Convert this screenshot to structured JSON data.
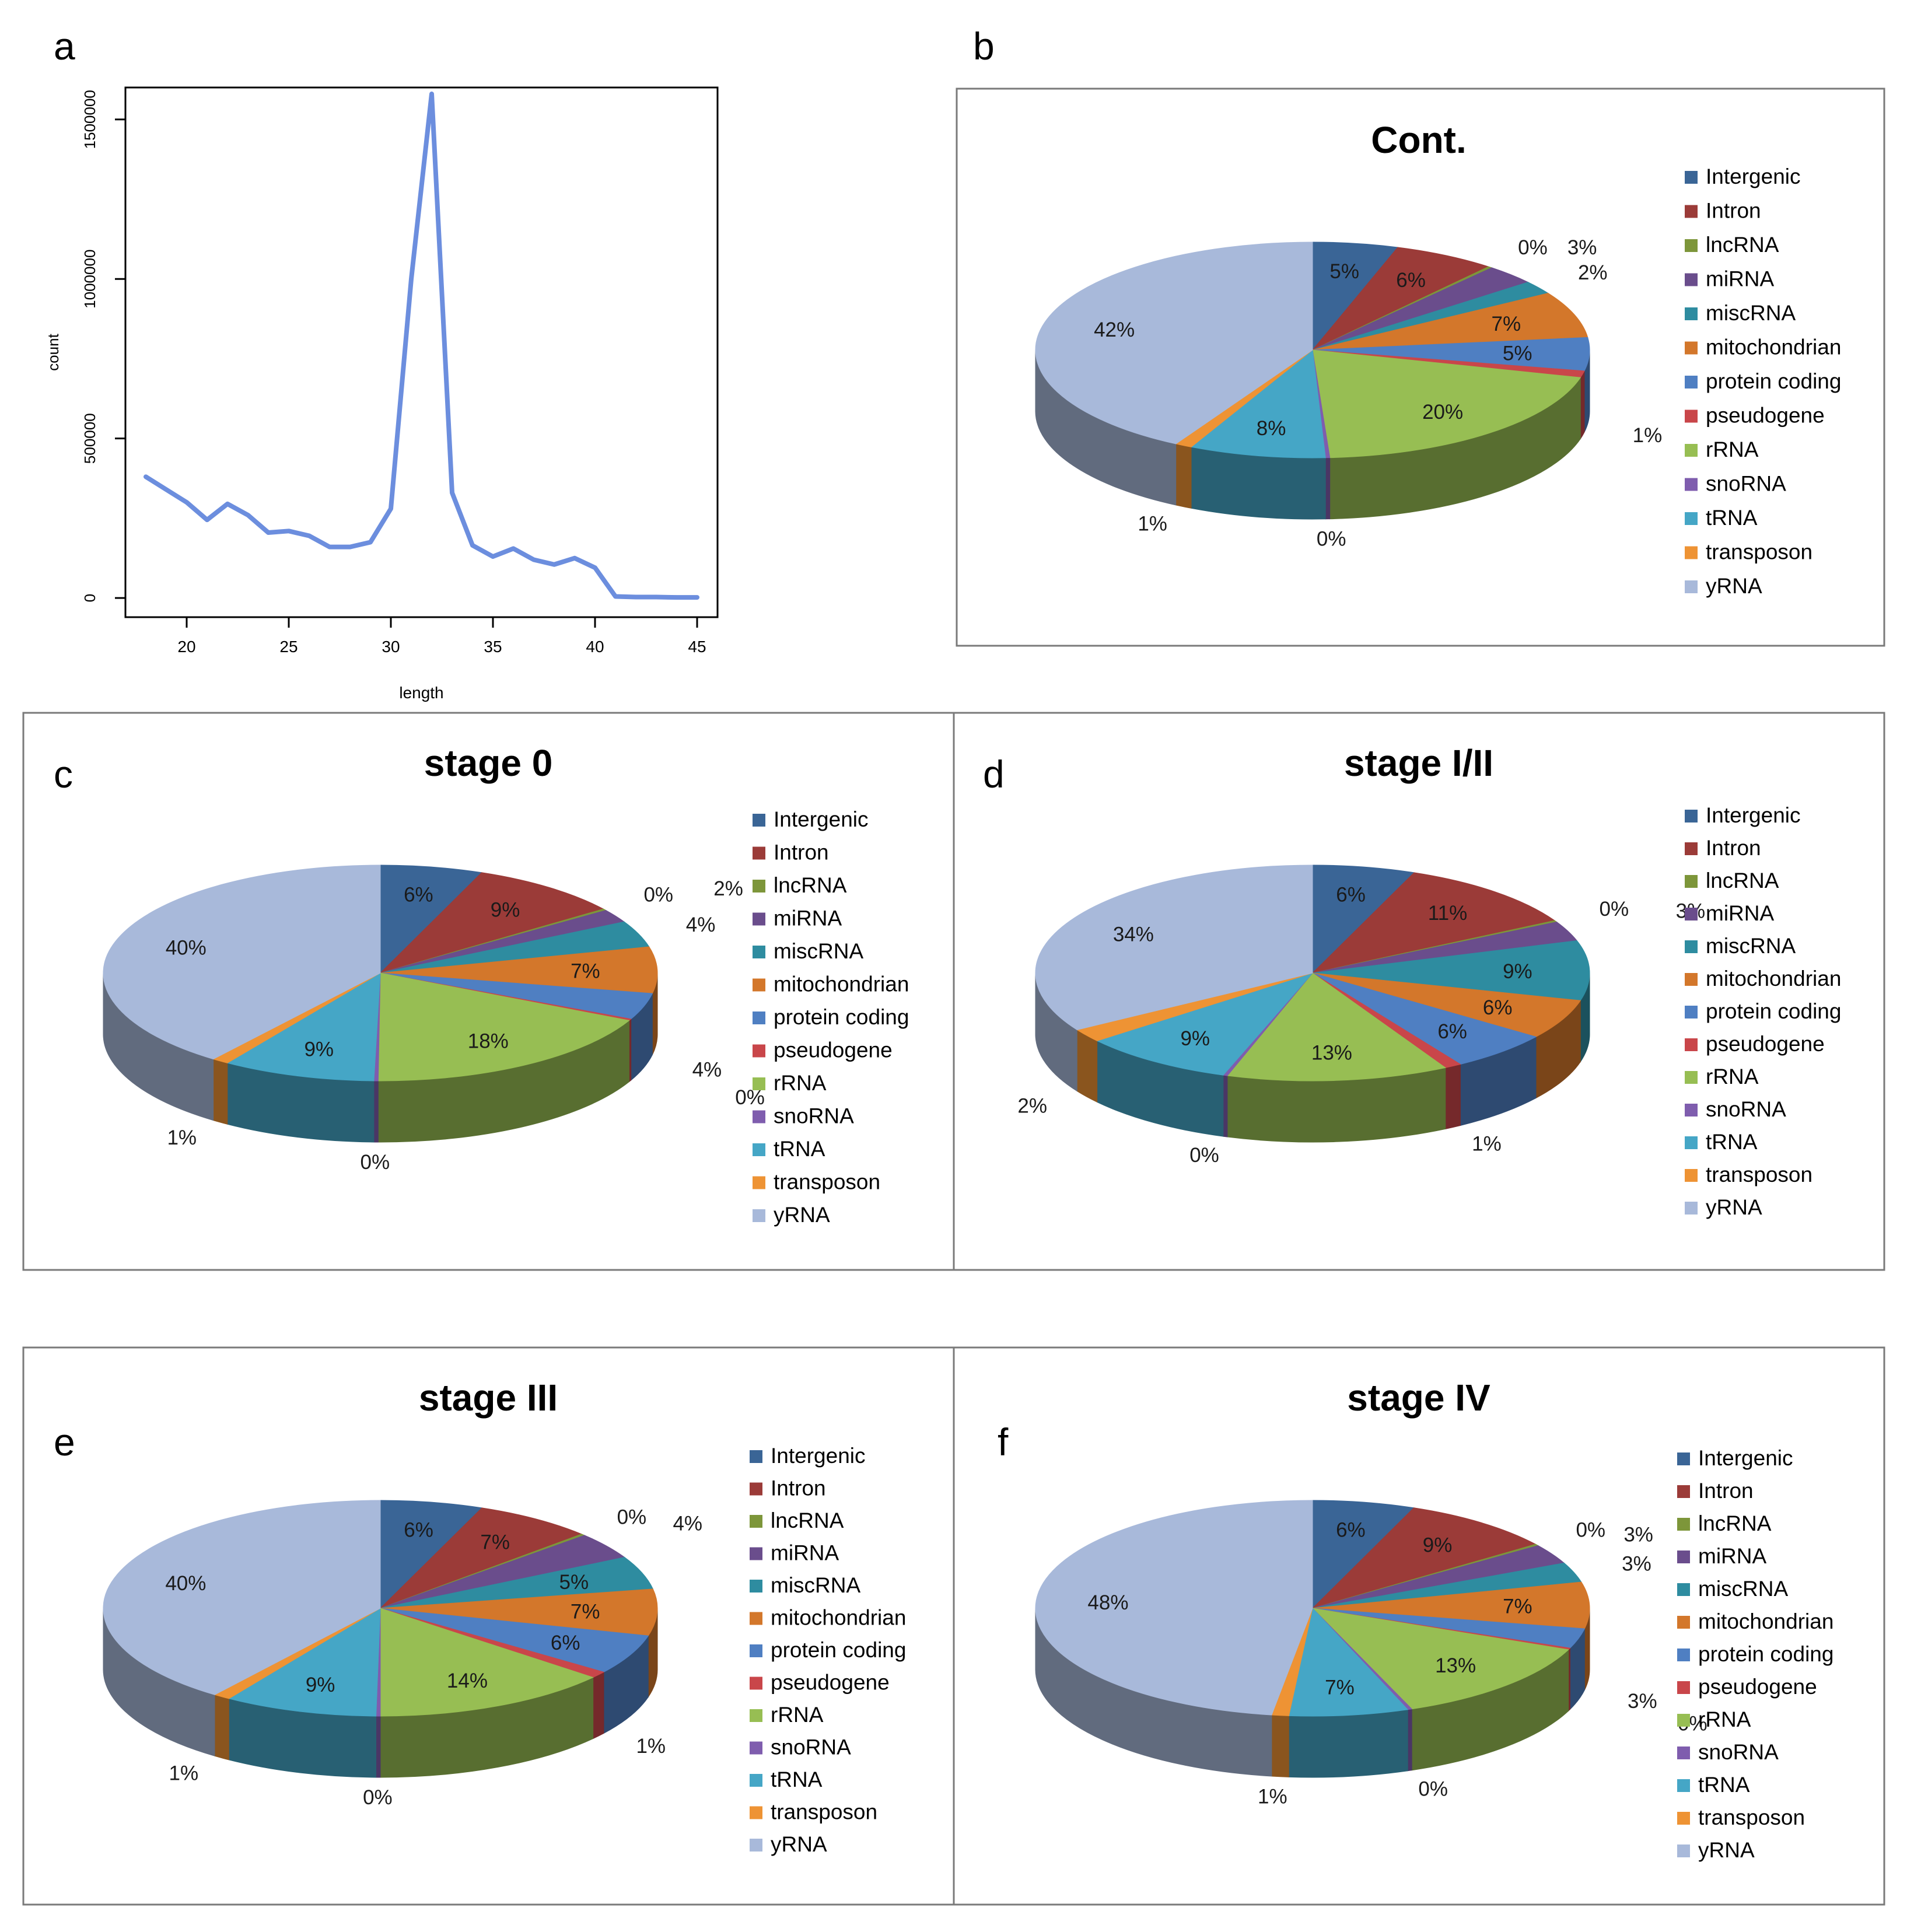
{
  "panel_letters": [
    "a",
    "b",
    "c",
    "d",
    "e",
    "f"
  ],
  "legend": {
    "labels": [
      "Intergenic",
      "Intron",
      "lncRNA",
      "miRNA",
      "miscRNA",
      "mitochondrian",
      "protein coding",
      "pseudogene",
      "rRNA",
      "snoRNA",
      "tRNA",
      "transposon",
      "yRNA"
    ],
    "colors": [
      "#3A6596",
      "#9B3B38",
      "#7D963A",
      "#6A4D8C",
      "#2E8CA0",
      "#D3772B",
      "#4F7FC2",
      "#C9464A",
      "#97BE53",
      "#7F5DAE",
      "#45A6C6",
      "#EE9334",
      "#A8B9DA"
    ]
  },
  "chart_data": [
    {
      "type": "line",
      "panel": "a",
      "title": "",
      "xlabel": "length",
      "ylabel": "count",
      "xlim": [
        17,
        46
      ],
      "ylim": [
        -60000,
        1600000
      ],
      "x_ticks": [
        20,
        25,
        30,
        35,
        40,
        45
      ],
      "y_ticks": [
        0,
        500000,
        1000000,
        1500000
      ],
      "x_tick_labels": [
        "20",
        "25",
        "30",
        "35",
        "40",
        "45"
      ],
      "y_tick_labels": [
        "0",
        "500000",
        "1000000",
        "1500000"
      ],
      "line_color": "#6C8EDE",
      "x": [
        18,
        19,
        20,
        21,
        22,
        23,
        24,
        25,
        26,
        27,
        28,
        29,
        30,
        31,
        32,
        33,
        34,
        35,
        36,
        37,
        38,
        39,
        40,
        41,
        42,
        43,
        44,
        45
      ],
      "y": [
        380000,
        340000,
        300000,
        245000,
        295000,
        260000,
        205000,
        210000,
        195000,
        160000,
        160000,
        175000,
        280000,
        1000000,
        1580000,
        330000,
        165000,
        130000,
        155000,
        120000,
        105000,
        125000,
        95000,
        5000,
        3000,
        3000,
        2000,
        2000
      ]
    },
    {
      "type": "pie",
      "panel": "b",
      "title": "Cont.",
      "values": [
        5,
        6,
        0,
        3,
        2,
        7,
        5,
        1,
        20,
        0,
        8,
        1,
        42
      ],
      "labels": [
        "5%",
        "6%",
        "0%",
        "3%",
        "2%",
        "7%",
        "5%",
        "1%",
        "20%",
        "0%",
        "8%",
        "1%",
        "42%"
      ]
    },
    {
      "type": "pie",
      "panel": "c",
      "title": "stage 0",
      "values": [
        6,
        9,
        0,
        2,
        4,
        7,
        4,
        0,
        18,
        0,
        9,
        1,
        40
      ],
      "labels": [
        "6%",
        "9%",
        "0%",
        "2%",
        "4%",
        "7%",
        "4%",
        "0%",
        "18%",
        "0%",
        "9%",
        "1%",
        "40%"
      ]
    },
    {
      "type": "pie",
      "panel": "d",
      "title": "stage I/II",
      "values": [
        6,
        11,
        0,
        3,
        9,
        6,
        6,
        1,
        13,
        0,
        9,
        2,
        34
      ],
      "labels": [
        "6%",
        "11%",
        "0%",
        "3%",
        "9%",
        "6%",
        "6%",
        "1%",
        "13%",
        "0%",
        "9%",
        "2%",
        "34%"
      ]
    },
    {
      "type": "pie",
      "panel": "e",
      "title": "stage III",
      "values": [
        6,
        7,
        0,
        4,
        5,
        7,
        6,
        1,
        14,
        0,
        9,
        1,
        40
      ],
      "labels": [
        "6%",
        "7%",
        "0%",
        "4%",
        "5%",
        "7%",
        "6%",
        "1%",
        "14%",
        "0%",
        "9%",
        "1%",
        "40%"
      ]
    },
    {
      "type": "pie",
      "panel": "f",
      "title": "stage IV",
      "values": [
        6,
        9,
        0,
        3,
        3,
        7,
        3,
        0,
        13,
        0,
        7,
        1,
        48
      ],
      "labels": [
        "6%",
        "9%",
        "0%",
        "3%",
        "3%",
        "7%",
        "3%",
        "0%",
        "13%",
        "0%",
        "7%",
        "1%",
        "48%"
      ]
    }
  ]
}
